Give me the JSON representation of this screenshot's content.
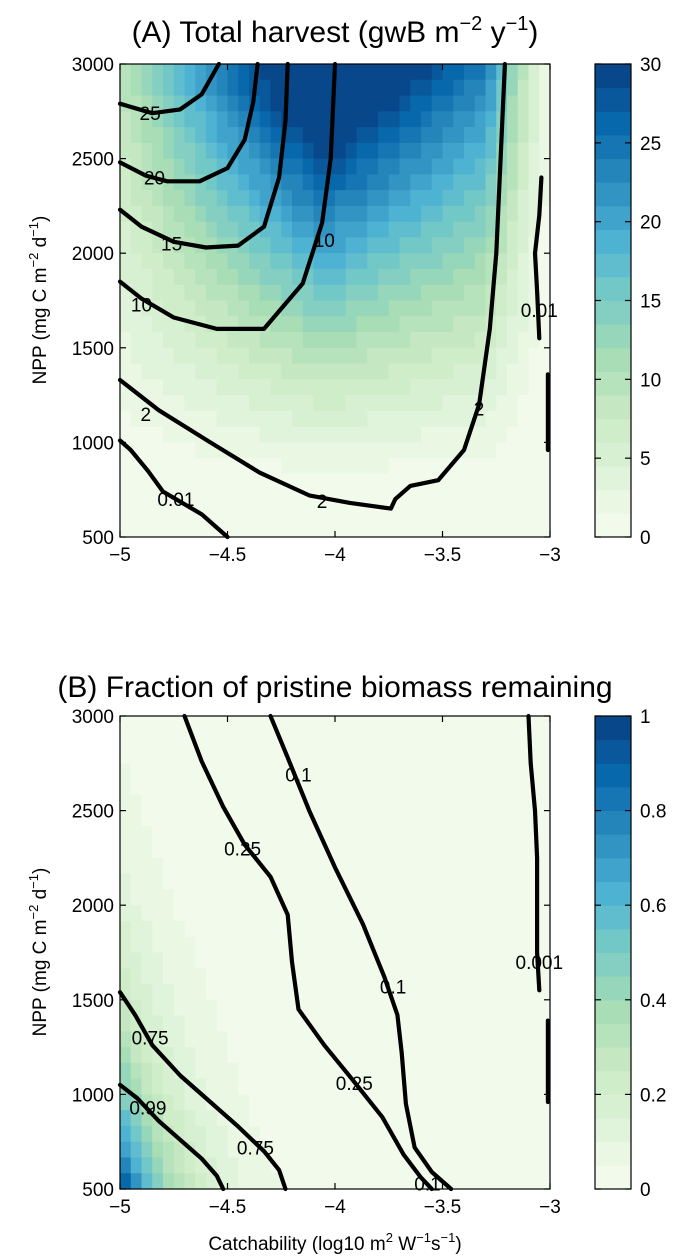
{
  "chart_data": [
    {
      "type": "heatmap",
      "panel": "A",
      "title": "(A) Total harvest (gwB m",
      "title_sup1": "−2",
      "title_mid": " y",
      "title_sup2": "−1",
      "title_end": ")",
      "xlabel": "",
      "ylabel": "NPP (mg C m",
      "ylabel_sup1": "−2",
      "ylabel_mid": " d",
      "ylabel_sup2": "−1",
      "ylabel_end": ")",
      "xlim": [
        -5,
        -3
      ],
      "ylim": [
        500,
        3000
      ],
      "x_ticks": [
        -5,
        -4.5,
        -4,
        -3.5,
        -3
      ],
      "x_tick_labels": [
        "−5",
        "−4.5",
        "−4",
        "−3.5",
        "−3"
      ],
      "y_ticks": [
        500,
        1000,
        1500,
        2000,
        2500,
        3000
      ],
      "y_tick_labels": [
        "500",
        "1000",
        "1500",
        "2000",
        "2500",
        "3000"
      ],
      "colorbar": {
        "range": [
          0,
          30
        ],
        "ticks": [
          0,
          5,
          10,
          15,
          20,
          25,
          30
        ],
        "tick_labels": [
          "0",
          "5",
          "10",
          "15",
          "20",
          "25",
          "30"
        ],
        "levels": 20
      },
      "grid": false,
      "contours": [
        {
          "level_label": "25",
          "points": [
            [
              -5,
              2790
            ],
            [
              -4.85,
              2740
            ],
            [
              -4.72,
              2760
            ],
            [
              -4.62,
              2840
            ],
            [
              -4.54,
              3000
            ]
          ]
        },
        {
          "level_label": "20",
          "points": [
            [
              -5,
              2480
            ],
            [
              -4.88,
              2410
            ],
            [
              -4.78,
              2380
            ],
            [
              -4.63,
              2380
            ],
            [
              -4.5,
              2450
            ],
            [
              -4.42,
              2600
            ],
            [
              -4.38,
              2800
            ],
            [
              -4.36,
              3000
            ]
          ]
        },
        {
          "level_label": "15",
          "points": [
            [
              -5,
              2230
            ],
            [
              -4.9,
              2140
            ],
            [
              -4.75,
              2060
            ],
            [
              -4.6,
              2030
            ],
            [
              -4.45,
              2040
            ],
            [
              -4.33,
              2140
            ],
            [
              -4.26,
              2400
            ],
            [
              -4.23,
              2700
            ],
            [
              -4.22,
              3000
            ]
          ]
        },
        {
          "level_label": "10",
          "points": [
            [
              -5,
              1850
            ],
            [
              -4.9,
              1760
            ],
            [
              -4.75,
              1660
            ],
            [
              -4.55,
              1600
            ],
            [
              -4.33,
              1600
            ],
            [
              -4.15,
              1840
            ],
            [
              -4.06,
              2160
            ],
            [
              -4.02,
              2500
            ],
            [
              -4.0,
              3000
            ]
          ]
        },
        {
          "level_label": "2",
          "points": [
            [
              -5,
              1330
            ],
            [
              -4.82,
              1170
            ],
            [
              -4.58,
              1000
            ],
            [
              -4.35,
              840
            ],
            [
              -4.12,
              720
            ],
            [
              -3.93,
              680
            ],
            [
              -3.74,
              650
            ],
            [
              -3.72,
              700
            ],
            [
              -3.65,
              770
            ],
            [
              -3.52,
              800
            ],
            [
              -3.4,
              960
            ],
            [
              -3.33,
              1200
            ],
            [
              -3.28,
              1600
            ],
            [
              -3.25,
              2000
            ],
            [
              -3.23,
              2500
            ],
            [
              -3.21,
              3000
            ]
          ]
        },
        {
          "level_label": "0.01",
          "points": [
            [
              -5,
              1010
            ],
            [
              -4.95,
              960
            ],
            [
              -4.87,
              850
            ],
            [
              -4.8,
              740
            ],
            [
              -4.62,
              620
            ],
            [
              -4.5,
              500
            ]
          ]
        },
        {
          "level_label": "0.01",
          "points": [
            [
              -3.04,
              2400
            ],
            [
              -3.05,
              2200
            ],
            [
              -3.07,
              2000
            ],
            [
              -3.06,
              1800
            ],
            [
              -3.05,
              1550
            ]
          ]
        },
        {
          "level_label": "",
          "points": [
            [
              -3.01,
              1360
            ],
            [
              -3.01,
              960
            ]
          ]
        }
      ],
      "contour_labels": [
        {
          "text": "25",
          "x": -4.86,
          "y": 2740
        },
        {
          "text": "20",
          "x": -4.84,
          "y": 2400
        },
        {
          "text": "15",
          "x": -4.76,
          "y": 2050
        },
        {
          "text": "10",
          "x": -4.9,
          "y": 1730
        },
        {
          "text": "10",
          "x": -4.05,
          "y": 2070
        },
        {
          "text": "2",
          "x": -4.88,
          "y": 1150
        },
        {
          "text": "2",
          "x": -4.06,
          "y": 690
        },
        {
          "text": "2",
          "x": -3.33,
          "y": 1180
        },
        {
          "text": "0.01",
          "x": -4.74,
          "y": 700
        },
        {
          "text": "0.01",
          "x": -3.05,
          "y": 1700
        }
      ]
    },
    {
      "type": "heatmap",
      "panel": "B",
      "title": "(B) Fraction of pristine biomass remaining",
      "xlabel": "Catchability (log10 m",
      "xlabel_sup1": "2",
      "xlabel_mid": " W",
      "xlabel_sup2": "−1",
      "xlabel_mid2": "s",
      "xlabel_sup3": "−1",
      "xlabel_end": ")",
      "ylabel": "NPP (mg C m",
      "ylabel_sup1": "−2",
      "ylabel_mid": " d",
      "ylabel_sup2": "−1",
      "ylabel_end": ")",
      "xlim": [
        -5,
        -3
      ],
      "ylim": [
        500,
        3000
      ],
      "x_ticks": [
        -5,
        -4.5,
        -4,
        -3.5,
        -3
      ],
      "x_tick_labels": [
        "−5",
        "−4.5",
        "−4",
        "−3.5",
        "−3"
      ],
      "y_ticks": [
        500,
        1000,
        1500,
        2000,
        2500,
        3000
      ],
      "y_tick_labels": [
        "500",
        "1000",
        "1500",
        "2000",
        "2500",
        "3000"
      ],
      "colorbar": {
        "range": [
          0,
          1
        ],
        "ticks": [
          0,
          0.2,
          0.4,
          0.6,
          0.8,
          1
        ],
        "tick_labels": [
          "0",
          "0.2",
          "0.4",
          "0.6",
          "0.8",
          "1"
        ],
        "levels": 20
      },
      "grid": false,
      "contours": [
        {
          "level_label": "0.99",
          "points": [
            [
              -5,
              1050
            ],
            [
              -4.92,
              980
            ],
            [
              -4.82,
              860
            ],
            [
              -4.72,
              760
            ],
            [
              -4.62,
              660
            ],
            [
              -4.55,
              570
            ],
            [
              -4.52,
              500
            ]
          ]
        },
        {
          "level_label": "0.75",
          "points": [
            [
              -5,
              1540
            ],
            [
              -4.93,
              1420
            ],
            [
              -4.85,
              1260
            ],
            [
              -4.72,
              1100
            ],
            [
              -4.58,
              960
            ],
            [
              -4.45,
              830
            ],
            [
              -4.33,
              700
            ],
            [
              -4.26,
              600
            ],
            [
              -4.23,
              500
            ]
          ]
        },
        {
          "level_label": "0.25",
          "points": [
            [
              -4.7,
              3000
            ],
            [
              -4.62,
              2760
            ],
            [
              -4.52,
              2520
            ],
            [
              -4.42,
              2320
            ],
            [
              -4.3,
              2150
            ],
            [
              -4.22,
              1950
            ],
            [
              -4.2,
              1700
            ],
            [
              -4.17,
              1450
            ],
            [
              -4.05,
              1260
            ],
            [
              -3.92,
              1080
            ],
            [
              -3.78,
              880
            ],
            [
              -3.68,
              680
            ],
            [
              -3.6,
              560
            ],
            [
              -3.55,
              500
            ]
          ]
        },
        {
          "level_label": "0.1",
          "points": [
            [
              -4.3,
              3000
            ],
            [
              -4.22,
              2780
            ],
            [
              -4.12,
              2500
            ],
            [
              -4.0,
              2200
            ],
            [
              -3.87,
              1900
            ],
            [
              -3.77,
              1620
            ],
            [
              -3.71,
              1420
            ],
            [
              -3.69,
              1220
            ],
            [
              -3.67,
              950
            ],
            [
              -3.63,
              720
            ],
            [
              -3.55,
              590
            ],
            [
              -3.46,
              500
            ]
          ]
        },
        {
          "level_label": "0.001",
          "points": [
            [
              -3.1,
              3000
            ],
            [
              -3.09,
              2750
            ],
            [
              -3.07,
              2500
            ],
            [
              -3.06,
              2250
            ],
            [
              -3.06,
              2000
            ],
            [
              -3.06,
              1750
            ],
            [
              -3.05,
              1550
            ]
          ]
        },
        {
          "level_label": "",
          "points": [
            [
              -3.01,
              1390
            ],
            [
              -3.01,
              960
            ]
          ]
        }
      ],
      "contour_labels": [
        {
          "text": "0.99",
          "x": -4.87,
          "y": 930
        },
        {
          "text": "0.75",
          "x": -4.86,
          "y": 1300
        },
        {
          "text": "0.75",
          "x": -4.37,
          "y": 720
        },
        {
          "text": "0.25",
          "x": -4.43,
          "y": 2300
        },
        {
          "text": "0.25",
          "x": -3.91,
          "y": 1060
        },
        {
          "text": "0.1",
          "x": -4.17,
          "y": 2690
        },
        {
          "text": "0.1",
          "x": -3.73,
          "y": 1570
        },
        {
          "text": "0.1",
          "x": -3.57,
          "y": 530
        },
        {
          "text": "0.001",
          "x": -3.05,
          "y": 1700
        }
      ]
    }
  ]
}
